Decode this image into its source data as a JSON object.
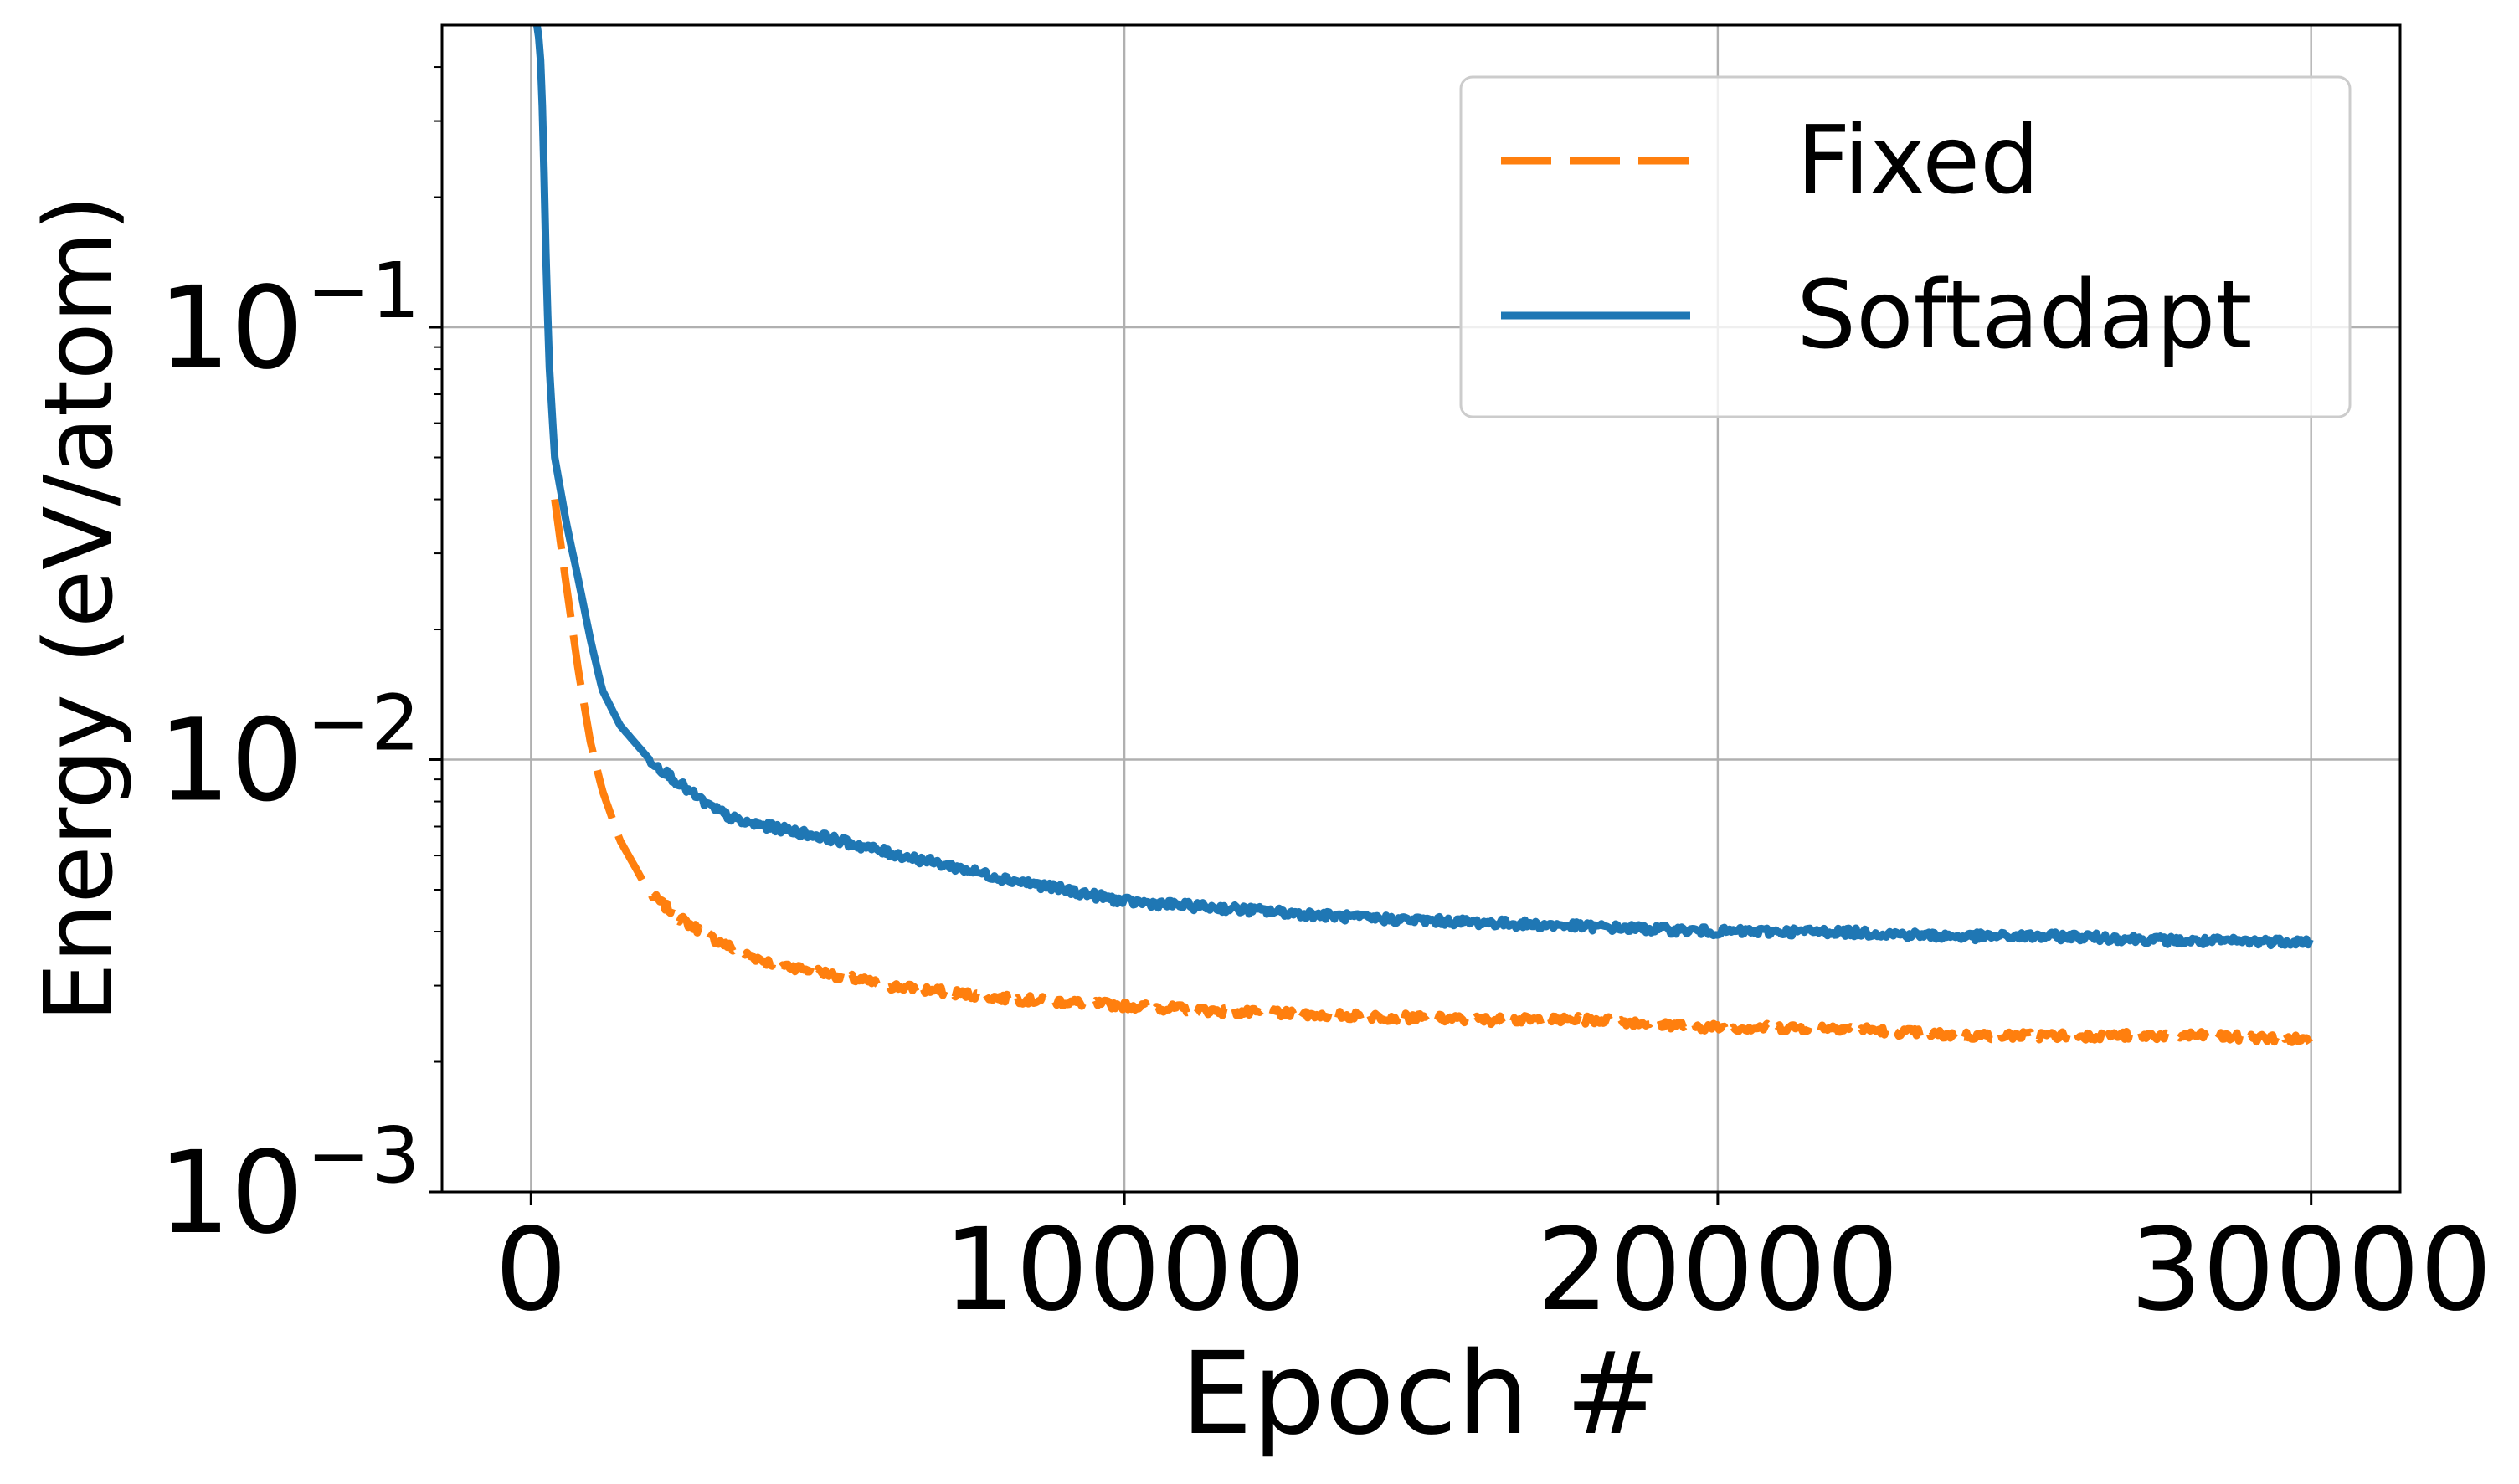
{
  "chart_data": {
    "type": "line",
    "xlabel": "Epoch #",
    "ylabel": "Energy (eV/atom)",
    "xlim": [
      -1500,
      31500
    ],
    "ylim": [
      0.001,
      0.5
    ],
    "y_scale": "log",
    "x_ticks": [
      0,
      10000,
      20000,
      30000
    ],
    "x_tick_labels": [
      "0",
      "10000",
      "20000",
      "30000"
    ],
    "y_ticks": [
      {
        "value": 0.1,
        "base": "10",
        "exp": "−1"
      },
      {
        "value": 0.01,
        "base": "10",
        "exp": "−2"
      },
      {
        "value": 0.001,
        "base": "10",
        "exp": "−3"
      }
    ],
    "grid": true,
    "legend_position": "upper right",
    "series": [
      {
        "name": "Fixed",
        "color": "#ff7f0e",
        "style": "dashed",
        "x": [
          400,
          600,
          800,
          1000,
          1200,
          1500,
          1800,
          2000,
          2500,
          3000,
          3500,
          4000,
          5000,
          6000,
          7000,
          8000,
          9000,
          10000,
          12000,
          14000,
          16000,
          18000,
          20000,
          22000,
          24000,
          26000,
          28000,
          30000
        ],
        "y": [
          0.04,
          0.025,
          0.016,
          0.011,
          0.0085,
          0.0065,
          0.0055,
          0.0049,
          0.0043,
          0.0039,
          0.0036,
          0.0034,
          0.0032,
          0.003,
          0.0029,
          0.0028,
          0.00275,
          0.0027,
          0.0026,
          0.00255,
          0.0025,
          0.0025,
          0.0024,
          0.0024,
          0.0023,
          0.0023,
          0.0023,
          0.00225
        ]
      },
      {
        "name": "Softadapt",
        "color": "#1f77b4",
        "style": "solid",
        "x": [
          100,
          150,
          200,
          250,
          300,
          400,
          600,
          800,
          1000,
          1200,
          1500,
          2000,
          2500,
          3000,
          3500,
          4000,
          5000,
          6000,
          7000,
          8000,
          9000,
          10000,
          12000,
          14000,
          16000,
          18000,
          20000,
          22000,
          24000,
          26000,
          28000,
          30000
        ],
        "y": [
          0.5,
          0.45,
          0.3,
          0.15,
          0.085,
          0.05,
          0.035,
          0.026,
          0.019,
          0.0145,
          0.012,
          0.01,
          0.0088,
          0.0078,
          0.0072,
          0.007,
          0.0066,
          0.0061,
          0.0057,
          0.0053,
          0.005,
          0.0047,
          0.0045,
          0.0043,
          0.0042,
          0.0041,
          0.004,
          0.004,
          0.0039,
          0.0039,
          0.0038,
          0.0038
        ]
      }
    ]
  }
}
